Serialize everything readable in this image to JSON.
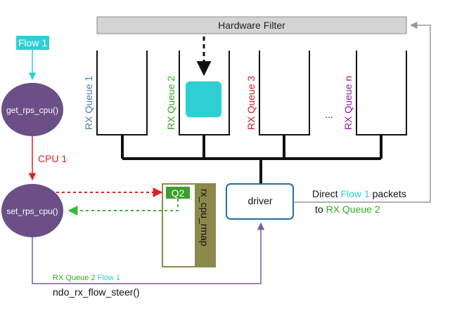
{
  "hardware_filter": {
    "label": "Hardware Filter",
    "color": "#d4d4d4"
  },
  "queues": [
    {
      "label": "RX Queue 1",
      "color": "#4a7fb5"
    },
    {
      "label": "RX Queue 2",
      "color": "#33aa22"
    },
    {
      "label": "RX Queue 3",
      "color": "#cc2222"
    },
    {
      "label": "RX Queue n",
      "color": "#9a1aa0"
    }
  ],
  "ellipsis": "...",
  "flow1_box": {
    "label": "Flow 1",
    "color": "#2ecfd3"
  },
  "packet_color": "#2ecfd3",
  "nodes": {
    "get_rps_cpu": "get_rps_cpu()",
    "set_rps_cpu": "set_rps_cpu()",
    "node_color": "#6b4f86"
  },
  "cpu_label": {
    "text": "CPU 1",
    "color": "#dd2222"
  },
  "driver": {
    "label": "driver",
    "border_color": "#1f6fa8"
  },
  "rmap": {
    "label": "rx_cpu_rmap",
    "q2_label": "Q2",
    "color": "#8c8a4a",
    "q2_color": "#3aa02a"
  },
  "direct_text": {
    "part1": "Direct ",
    "part2": "Flow 1",
    "part3": " packets",
    "part4": "to ",
    "part5": "RX Queue 2"
  },
  "steer": {
    "queue_part": "RX Queue 2",
    "flow_part": " Flow 1",
    "call": "ndo_rx_flow_steer()"
  }
}
